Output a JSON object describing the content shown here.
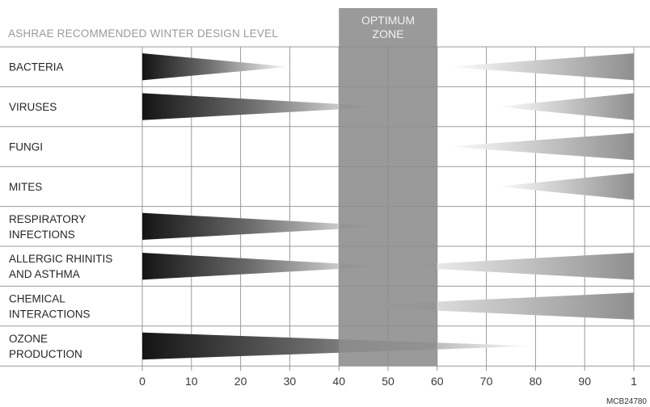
{
  "chart_data": {
    "type": "area",
    "title": "",
    "header_note": "ASHRAE RECOMMENDED WINTER DESIGN LEVEL",
    "optimum_zone": {
      "label_lines": [
        "OPTIMUM",
        "ZONE"
      ],
      "range": [
        40,
        60
      ]
    },
    "xlim": [
      0,
      100
    ],
    "x_ticks": [
      "0",
      "10",
      "20",
      "30",
      "40",
      "50",
      "60",
      "70",
      "80",
      "90",
      "1"
    ],
    "xlabel": "",
    "ylabel": "",
    "grid": true,
    "categories": [
      {
        "lines": [
          "BACTERIA"
        ],
        "segments": [
          {
            "from": 0,
            "to": 30,
            "dir": "down"
          },
          {
            "from": 62,
            "to": 100,
            "dir": "up"
          }
        ]
      },
      {
        "lines": [
          "VIRUSES"
        ],
        "segments": [
          {
            "from": 0,
            "to": 50,
            "dir": "down"
          },
          {
            "from": 72,
            "to": 100,
            "dir": "up"
          }
        ]
      },
      {
        "lines": [
          "FUNGI"
        ],
        "segments": [
          {
            "from": 62,
            "to": 100,
            "dir": "up"
          }
        ]
      },
      {
        "lines": [
          "MITES"
        ],
        "segments": [
          {
            "from": 72,
            "to": 100,
            "dir": "up"
          }
        ]
      },
      {
        "lines": [
          "RESPIRATORY",
          "INFECTIONS"
        ],
        "segments": [
          {
            "from": 0,
            "to": 50,
            "dir": "down"
          }
        ]
      },
      {
        "lines": [
          "ALLERGIC RHINITIS",
          "AND ASTHMA"
        ],
        "segments": [
          {
            "from": 0,
            "to": 50,
            "dir": "down"
          },
          {
            "from": 50,
            "to": 100,
            "dir": "up"
          }
        ]
      },
      {
        "lines": [
          "CHEMICAL",
          "INTERACTIONS"
        ],
        "segments": [
          {
            "from": 40,
            "to": 100,
            "dir": "up"
          }
        ]
      },
      {
        "lines": [
          "OZONE",
          "PRODUCTION"
        ],
        "segments": [
          {
            "from": 0,
            "to": 80,
            "dir": "down"
          }
        ]
      }
    ],
    "figure_code": "MCB24780"
  },
  "colors": {
    "grid": "#9a9a9a",
    "zone": "#8c8c8c",
    "zone_text": "#f2f2f2",
    "bar_dark": "#141414",
    "bar_light": "#ffffff"
  }
}
